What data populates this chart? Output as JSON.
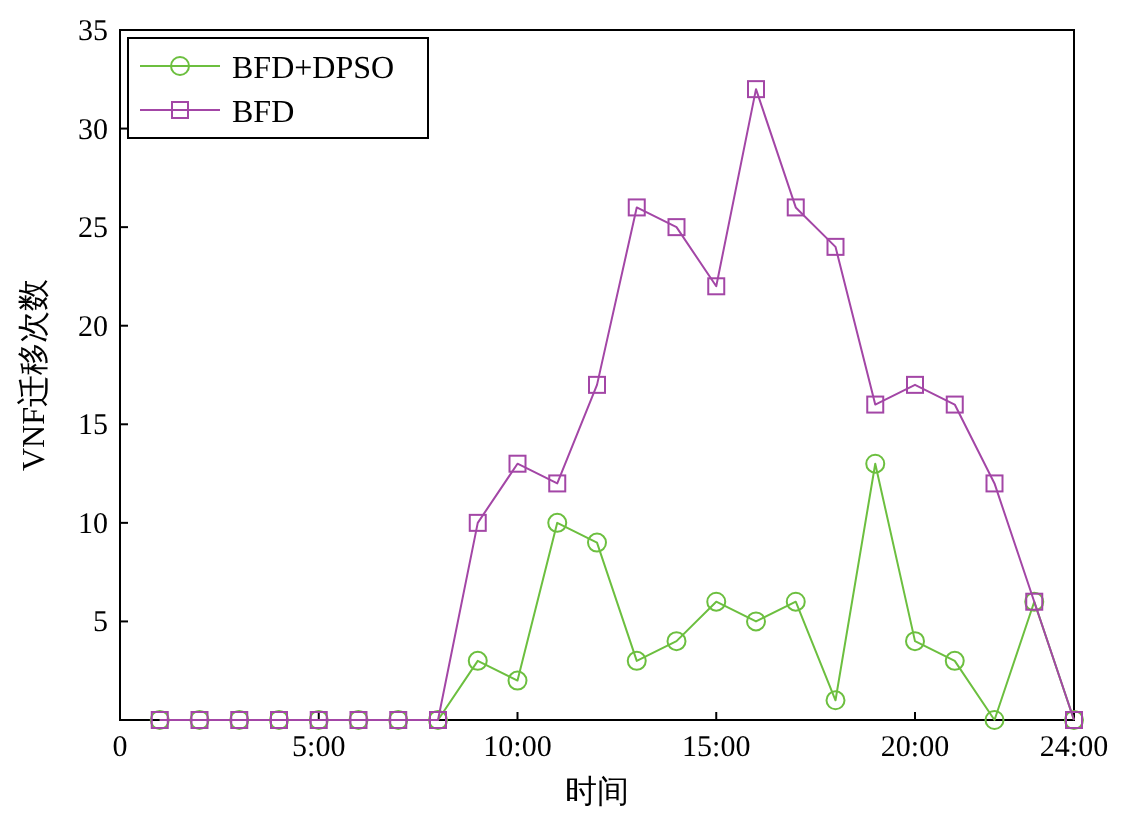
{
  "chart_data": {
    "type": "line",
    "xlabel": "时间",
    "ylabel": "VNF迁移次数",
    "x": [
      1,
      2,
      3,
      4,
      5,
      6,
      7,
      8,
      9,
      10,
      11,
      12,
      13,
      14,
      15,
      16,
      17,
      18,
      19,
      20,
      21,
      22,
      23,
      24
    ],
    "series": [
      {
        "name": "BFD+DPSO",
        "color": "#6cbf3f",
        "marker": "circle",
        "values": [
          0,
          0,
          0,
          0,
          0,
          0,
          0,
          0,
          3,
          2,
          10,
          9,
          3,
          4,
          6,
          5,
          6,
          1,
          13,
          4,
          3,
          0,
          6,
          0
        ]
      },
      {
        "name": "BFD",
        "color": "#a346a6",
        "marker": "square",
        "values": [
          0,
          0,
          0,
          0,
          0,
          0,
          0,
          0,
          10,
          13,
          12,
          17,
          26,
          25,
          22,
          32,
          26,
          24,
          16,
          17,
          16,
          12,
          6,
          0
        ]
      }
    ],
    "xlim": [
      0,
      24
    ],
    "xticks": [
      0,
      {
        "value": 5,
        "label": "5:00"
      },
      {
        "value": 10,
        "label": "10:00"
      },
      {
        "value": 15,
        "label": "15:00"
      },
      {
        "value": 20,
        "label": "20:00"
      },
      {
        "value": 24,
        "label": "24:00"
      }
    ],
    "ylim": [
      0,
      35
    ],
    "yticks": [
      5,
      10,
      15,
      20,
      25,
      30,
      35
    ],
    "grid": false,
    "legend": "top left",
    "line_style": "solid"
  }
}
